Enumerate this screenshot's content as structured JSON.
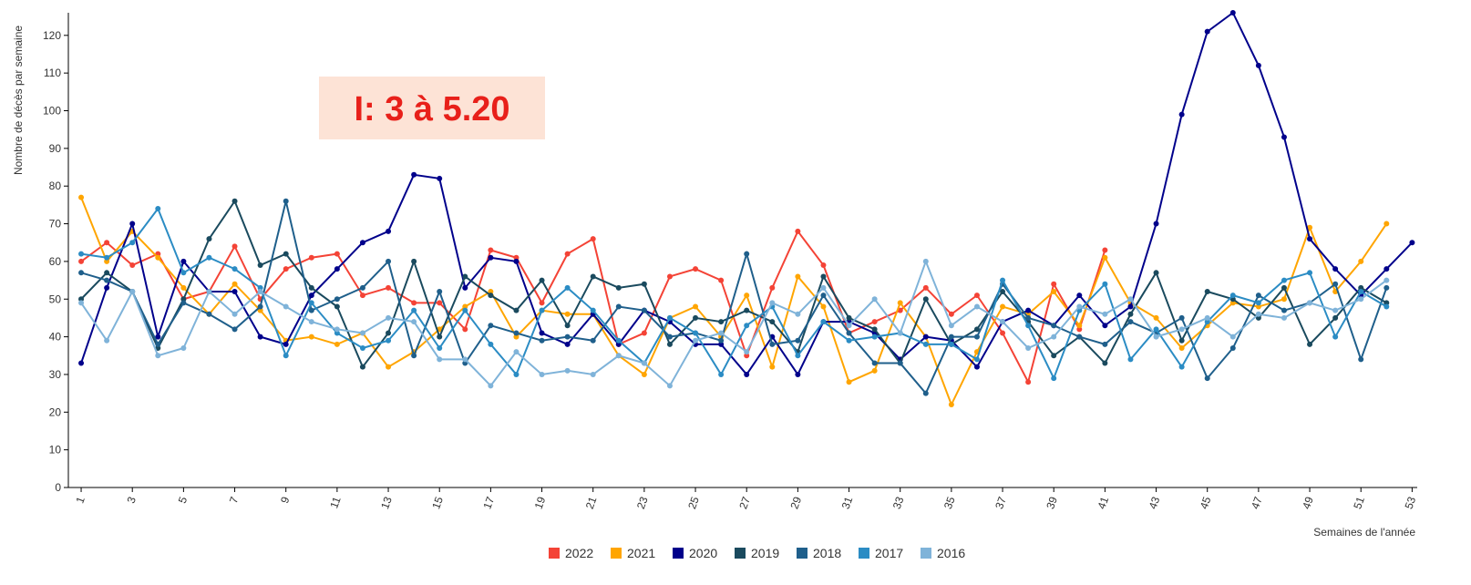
{
  "chart_data": {
    "type": "line",
    "annotation": "I: 3 à 5.20",
    "y_label": "Nombre de décès par semaine",
    "x_label": "Semaines de l'année",
    "x": [
      1,
      2,
      3,
      4,
      5,
      6,
      7,
      8,
      9,
      10,
      11,
      12,
      13,
      14,
      15,
      16,
      17,
      18,
      19,
      20,
      21,
      22,
      23,
      24,
      25,
      26,
      27,
      28,
      29,
      30,
      31,
      32,
      33,
      34,
      35,
      36,
      37,
      38,
      39,
      40,
      41,
      42,
      43,
      44,
      45,
      46,
      47,
      48,
      49,
      50,
      51,
      52,
      53
    ],
    "xlim": [
      0.5,
      53.2
    ],
    "xticks": [
      1,
      3,
      5,
      7,
      9,
      11,
      13,
      15,
      17,
      19,
      21,
      23,
      25,
      27,
      29,
      31,
      33,
      35,
      37,
      39,
      41,
      43,
      45,
      47,
      49,
      51,
      53
    ],
    "ylim": [
      0,
      126
    ],
    "yticks": [
      0,
      10,
      20,
      30,
      40,
      50,
      60,
      70,
      80,
      90,
      100,
      110,
      120
    ],
    "legend": "bottom",
    "series": [
      {
        "name": "2022",
        "color": "#f44336",
        "values": [
          60,
          65,
          59,
          62,
          50,
          52,
          64,
          50,
          58,
          61,
          62,
          51,
          53,
          49,
          49,
          42,
          63,
          61,
          49,
          62,
          66,
          38,
          41,
          56,
          58,
          55,
          35,
          53,
          68,
          59,
          41,
          44,
          47,
          53,
          46,
          51,
          41,
          28,
          54,
          42,
          63,
          null,
          null,
          null,
          null,
          null,
          null,
          null,
          null,
          null,
          null,
          null,
          null
        ]
      },
      {
        "name": "2021",
        "color": "#ffa500",
        "values": [
          77,
          60,
          68,
          61,
          53,
          46,
          54,
          47,
          39,
          40,
          38,
          41,
          32,
          36,
          42,
          48,
          52,
          40,
          47,
          46,
          46,
          35,
          30,
          45,
          48,
          40,
          51,
          32,
          56,
          48,
          28,
          31,
          49,
          40,
          22,
          36,
          48,
          46,
          52,
          43,
          61,
          49,
          45,
          37,
          43,
          49,
          48,
          50,
          69,
          52,
          60,
          70,
          null
        ]
      },
      {
        "name": "2020",
        "color": "#00008b",
        "values": [
          33,
          53,
          70,
          40,
          60,
          52,
          52,
          40,
          38,
          51,
          58,
          65,
          68,
          83,
          82,
          53,
          61,
          60,
          41,
          38,
          46,
          38,
          47,
          44,
          38,
          38,
          30,
          40,
          30,
          44,
          44,
          41,
          34,
          40,
          39,
          32,
          44,
          47,
          43,
          51,
          43,
          48,
          70,
          99,
          121,
          126,
          112,
          93,
          66,
          58,
          51,
          58,
          65
        ]
      },
      {
        "name": "2019",
        "color": "#1a4a5e",
        "values": [
          50,
          57,
          52,
          37,
          50,
          66,
          76,
          59,
          62,
          53,
          48,
          32,
          41,
          60,
          40,
          56,
          51,
          47,
          55,
          43,
          56,
          53,
          54,
          38,
          45,
          44,
          47,
          44,
          36,
          56,
          45,
          42,
          33,
          50,
          38,
          42,
          52,
          44,
          35,
          40,
          33,
          46,
          57,
          39,
          52,
          50,
          45,
          53,
          38,
          45,
          53,
          49,
          null
        ]
      },
      {
        "name": "2018",
        "color": "#1f5f8b",
        "values": [
          57,
          55,
          52,
          38,
          49,
          46,
          42,
          48,
          76,
          47,
          50,
          53,
          60,
          35,
          52,
          33,
          43,
          41,
          39,
          40,
          39,
          48,
          47,
          40,
          41,
          39,
          62,
          38,
          39,
          51,
          41,
          33,
          33,
          25,
          40,
          40,
          54,
          45,
          43,
          40,
          38,
          44,
          41,
          45,
          29,
          37,
          51,
          47,
          49,
          54,
          34,
          53,
          null
        ]
      },
      {
        "name": "2017",
        "color": "#2b8cc4",
        "values": [
          62,
          61,
          65,
          74,
          57,
          61,
          58,
          53,
          35,
          49,
          41,
          37,
          39,
          47,
          37,
          47,
          38,
          30,
          47,
          53,
          47,
          39,
          33,
          45,
          41,
          30,
          43,
          48,
          35,
          44,
          39,
          40,
          41,
          38,
          38,
          34,
          55,
          43,
          29,
          47,
          54,
          34,
          42,
          32,
          44,
          51,
          49,
          55,
          57,
          40,
          52,
          48,
          null
        ]
      },
      {
        "name": "2016",
        "color": "#7fb3d9",
        "values": [
          49,
          39,
          52,
          35,
          37,
          52,
          46,
          52,
          48,
          44,
          42,
          41,
          45,
          44,
          34,
          34,
          27,
          36,
          30,
          31,
          30,
          35,
          33,
          27,
          39,
          41,
          36,
          49,
          46,
          53,
          43,
          50,
          41,
          60,
          43,
          48,
          44,
          37,
          40,
          48,
          46,
          50,
          40,
          42,
          45,
          40,
          46,
          45,
          49,
          47,
          50,
          55,
          null
        ]
      }
    ]
  }
}
